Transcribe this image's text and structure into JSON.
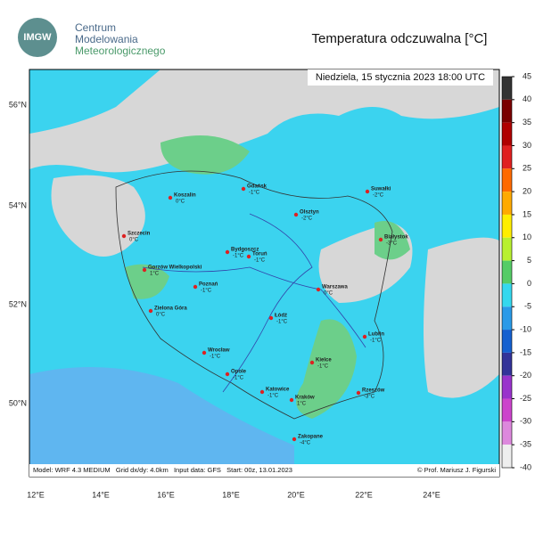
{
  "header": {
    "logo": "IMGW",
    "line1": "Centrum",
    "line2": "Modelowania",
    "line3": "Meteorologicznego",
    "title": "Temperatura odczuwalna [°C]"
  },
  "map": {
    "date": "Niedziela, 15 stycznia 2023 18:00 UTC",
    "lat_labels": [
      "56°N",
      "54°N",
      "52°N",
      "50°N"
    ],
    "lon_labels": [
      "12°E",
      "14°E",
      "16°E",
      "18°E",
      "20°E",
      "22°E",
      "24°E"
    ],
    "cities": [
      {
        "name": "Koszalin",
        "temp": "0°C"
      },
      {
        "name": "Gdańsk",
        "temp": "-1°C"
      },
      {
        "name": "Suwałki",
        "temp": "-2°C"
      },
      {
        "name": "Olsztyn",
        "temp": "-2°C"
      },
      {
        "name": "Szczecin",
        "temp": "0°C"
      },
      {
        "name": "Białystok",
        "temp": "-3°C"
      },
      {
        "name": "Bydgoszcz",
        "temp": "-1°C"
      },
      {
        "name": "Toruń",
        "temp": "-1°C"
      },
      {
        "name": "Gorzów Wielkopolski",
        "temp": "1°C"
      },
      {
        "name": "Poznań",
        "temp": "-1°C"
      },
      {
        "name": "Warszawa",
        "temp": "0°C"
      },
      {
        "name": "Zielona Góra",
        "temp": "0°C"
      },
      {
        "name": "Łódź",
        "temp": "-1°C"
      },
      {
        "name": "Lublin",
        "temp": "-1°C"
      },
      {
        "name": "Wrocław",
        "temp": "-1°C"
      },
      {
        "name": "Kielce",
        "temp": "-1°C"
      },
      {
        "name": "Opole",
        "temp": "-1°C"
      },
      {
        "name": "Rzeszów",
        "temp": "-3°C"
      },
      {
        "name": "Katowice",
        "temp": "-1°C"
      },
      {
        "name": "Kraków",
        "temp": "1°C"
      },
      {
        "name": "Zakopane",
        "temp": "-4°C"
      }
    ],
    "footer_left": "Model: WRF 4.3 MEDIUM   Grid dx/dy: 4.0km   Input data: GFS   Start: 00z, 13.01.2023",
    "footer_right": "© Prof. Mariusz J. Figurski"
  },
  "colorbar": {
    "ticks": [
      45,
      40,
      35,
      30,
      25,
      20,
      15,
      10,
      5,
      0,
      -5,
      -10,
      -15,
      -20,
      -25,
      -30,
      -35,
      -40
    ]
  }
}
